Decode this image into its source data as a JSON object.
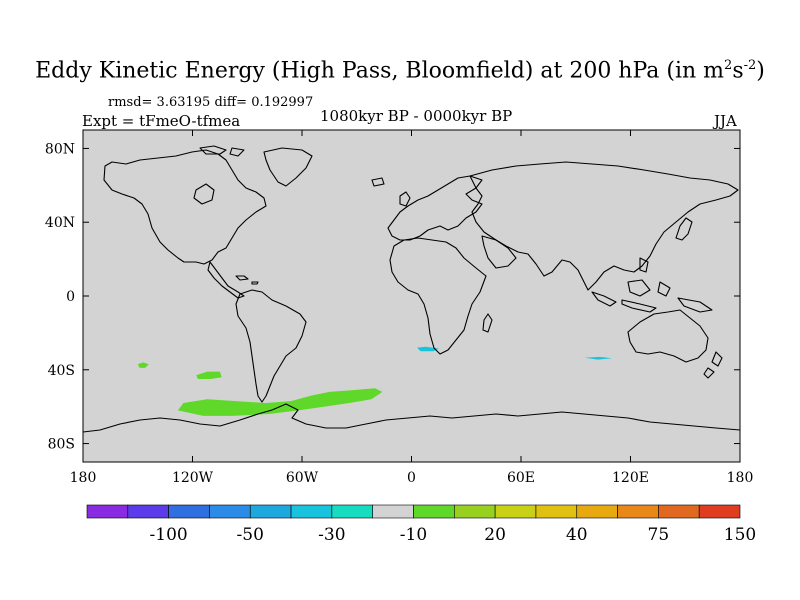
{
  "title": {
    "main": "Eddy Kinetic Energy (High Pass, Bloomfield) at 200 hPa (in m",
    "sup1": "2",
    "mid": "s",
    "sup2": "-2",
    "close": ")"
  },
  "subtitle": {
    "stats": "rmsd= 3.63195 diff= 0.192997",
    "expt": "Expt = tFmeO-tfmea",
    "period": "1080kyr BP - 0000kyr BP",
    "season": "JJA"
  },
  "map": {
    "lon_range": [
      -180,
      180
    ],
    "lat_range": [
      -90,
      90
    ],
    "background_color": "#d3d3d3",
    "x_ticks": [
      {
        "lon": -180,
        "label": "180"
      },
      {
        "lon": -120,
        "label": "120W"
      },
      {
        "lon": -60,
        "label": "60W"
      },
      {
        "lon": 0,
        "label": "0"
      },
      {
        "lon": 60,
        "label": "60E"
      },
      {
        "lon": 120,
        "label": "120E"
      },
      {
        "lon": 180,
        "label": "180"
      }
    ],
    "y_ticks": [
      {
        "lat": 80,
        "label": "80N"
      },
      {
        "lat": 40,
        "label": "40N"
      },
      {
        "lat": 0,
        "label": "0"
      },
      {
        "lat": -40,
        "label": "40S"
      },
      {
        "lat": -80,
        "label": "80S"
      }
    ]
  },
  "colorbar": {
    "colors": [
      "#8a2be2",
      "#5a3de8",
      "#2f6fe0",
      "#2a8ce6",
      "#1fa7e0",
      "#18c4dc",
      "#18dcc0",
      "#d3d3d3",
      "#5fd82a",
      "#98d020",
      "#c8d018",
      "#e0c010",
      "#e8a810",
      "#e88818",
      "#e06820",
      "#e03c20"
    ],
    "labels": [
      {
        "boundary": 2,
        "text": "-100"
      },
      {
        "boundary": 4,
        "text": "-50"
      },
      {
        "boundary": 6,
        "text": "-30"
      },
      {
        "boundary": 8,
        "text": "-10"
      },
      {
        "boundary": 10,
        "text": "20"
      },
      {
        "boundary": 12,
        "text": "40"
      },
      {
        "boundary": 14,
        "text": "75"
      },
      {
        "boundary": 16,
        "text": "150"
      }
    ]
  },
  "anomalies": [
    {
      "name": "south-pacific-green",
      "color": "#5fd82a",
      "polygon": [
        [
          -128,
          -62
        ],
        [
          -125,
          -58
        ],
        [
          -112,
          -56
        ],
        [
          -96,
          -57
        ],
        [
          -80,
          -58
        ],
        [
          -66,
          -57
        ],
        [
          -55,
          -54
        ],
        [
          -45,
          -52
        ],
        [
          -32,
          -51
        ],
        [
          -20,
          -50
        ],
        [
          -16,
          -52
        ],
        [
          -22,
          -56
        ],
        [
          -34,
          -58
        ],
        [
          -48,
          -60
        ],
        [
          -62,
          -62
        ],
        [
          -78,
          -64
        ],
        [
          -98,
          -65
        ],
        [
          -114,
          -65
        ]
      ]
    },
    {
      "name": "pacific-small-green",
      "color": "#5fd82a",
      "polygon": [
        [
          -118,
          -43
        ],
        [
          -112,
          -41
        ],
        [
          -105,
          -41
        ],
        [
          -104,
          -44
        ],
        [
          -110,
          -45
        ],
        [
          -117,
          -45
        ]
      ]
    },
    {
      "name": "far-pacific-green",
      "color": "#5fd82a",
      "polygon": [
        [
          -150,
          -37
        ],
        [
          -147,
          -36
        ],
        [
          -144,
          -37
        ],
        [
          -146,
          -39
        ],
        [
          -149,
          -39
        ]
      ]
    },
    {
      "name": "atlantic-cyan",
      "color": "#18c4dc",
      "polygon": [
        [
          3,
          -28
        ],
        [
          8,
          -27.5
        ],
        [
          15,
          -28.5
        ],
        [
          12,
          -30
        ],
        [
          5,
          -30
        ]
      ]
    },
    {
      "name": "indian-cyan",
      "color": "#18c4dc",
      "polygon": [
        [
          95,
          -33.5
        ],
        [
          103,
          -33
        ],
        [
          110,
          -33.8
        ],
        [
          102,
          -34.5
        ]
      ]
    }
  ]
}
